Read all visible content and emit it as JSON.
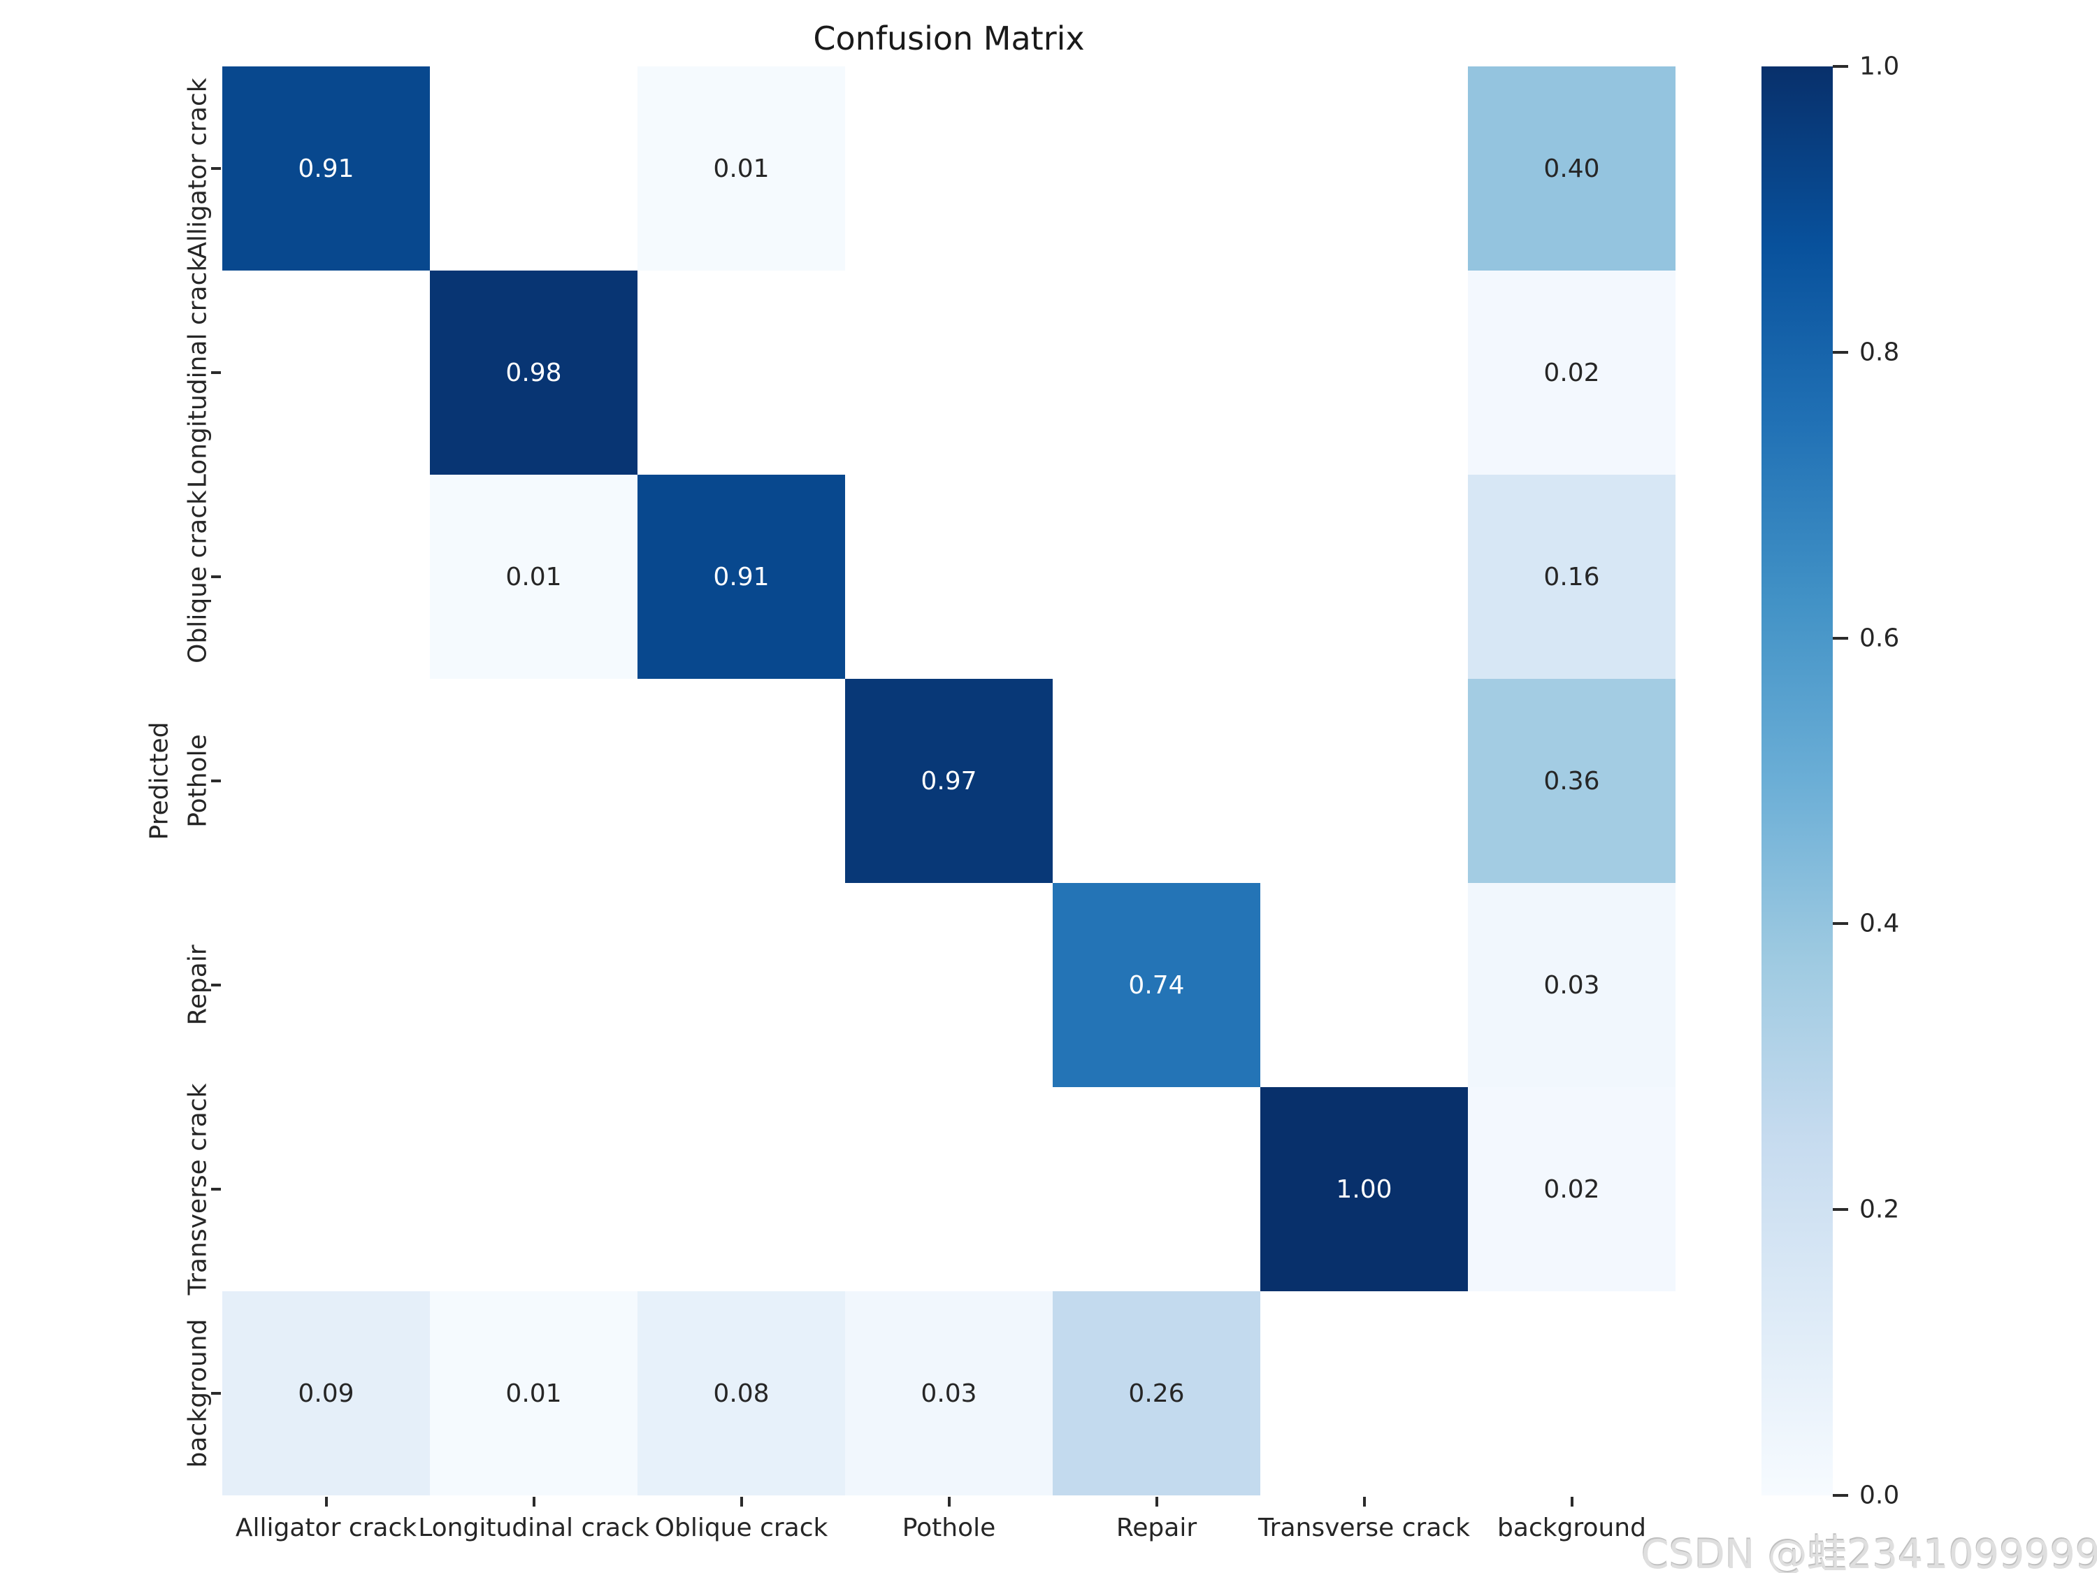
{
  "title": "Confusion Matrix",
  "axes": {
    "ylabel": "Predicted",
    "xlabel": "",
    "row_labels": [
      "Alligator crack",
      "Longitudinal crack",
      "Oblique crack",
      "Pothole",
      "Repair",
      "Transverse crack",
      "background"
    ],
    "col_labels": [
      "Alligator crack",
      "Longitudinal crack",
      "Oblique crack",
      "Pothole",
      "Repair",
      "Transverse crack",
      "background"
    ]
  },
  "chart_data": {
    "type": "heatmap",
    "title": "Confusion Matrix",
    "xlabel": "",
    "ylabel": "Predicted",
    "rows": [
      "Alligator crack",
      "Longitudinal crack",
      "Oblique crack",
      "Pothole",
      "Repair",
      "Transverse crack",
      "background"
    ],
    "cols": [
      "Alligator crack",
      "Longitudinal crack",
      "Oblique crack",
      "Pothole",
      "Repair",
      "Transverse crack",
      "background"
    ],
    "vmin": 0.0,
    "vmax": 1.0,
    "colormap": "Blues",
    "grid": false,
    "legend_position": "right-colorbar",
    "value_format": "0.00",
    "matrix": [
      [
        0.91,
        null,
        0.01,
        null,
        null,
        null,
        0.4
      ],
      [
        null,
        0.98,
        null,
        null,
        null,
        null,
        0.02
      ],
      [
        null,
        0.01,
        0.91,
        null,
        null,
        null,
        0.16
      ],
      [
        null,
        null,
        null,
        0.97,
        null,
        null,
        0.36
      ],
      [
        null,
        null,
        null,
        null,
        0.74,
        null,
        0.03
      ],
      [
        null,
        null,
        null,
        null,
        null,
        1.0,
        0.02
      ],
      [
        0.09,
        0.01,
        0.08,
        0.03,
        0.26,
        null,
        null
      ]
    ]
  },
  "colorbar": {
    "tick_labels": [
      "1.0",
      "0.8",
      "0.6",
      "0.4",
      "0.2",
      "0.0"
    ],
    "tick_values": [
      1.0,
      0.8,
      0.6,
      0.4,
      0.2,
      0.0
    ]
  },
  "watermark": "CSDN @蛙2341099999",
  "colors": {
    "background": "#ffffff",
    "text": "#262626",
    "annotation_on_dark": "#ffffff",
    "annotation_on_light": "#262626",
    "empty_cell": "#ffffff",
    "watermark": "#dfdfdf",
    "colormap_stops": [
      "#f7fbff",
      "#deebf7",
      "#c6dbef",
      "#9ecae1",
      "#6baed6",
      "#4292c6",
      "#2171b5",
      "#08519c",
      "#08306b"
    ]
  }
}
